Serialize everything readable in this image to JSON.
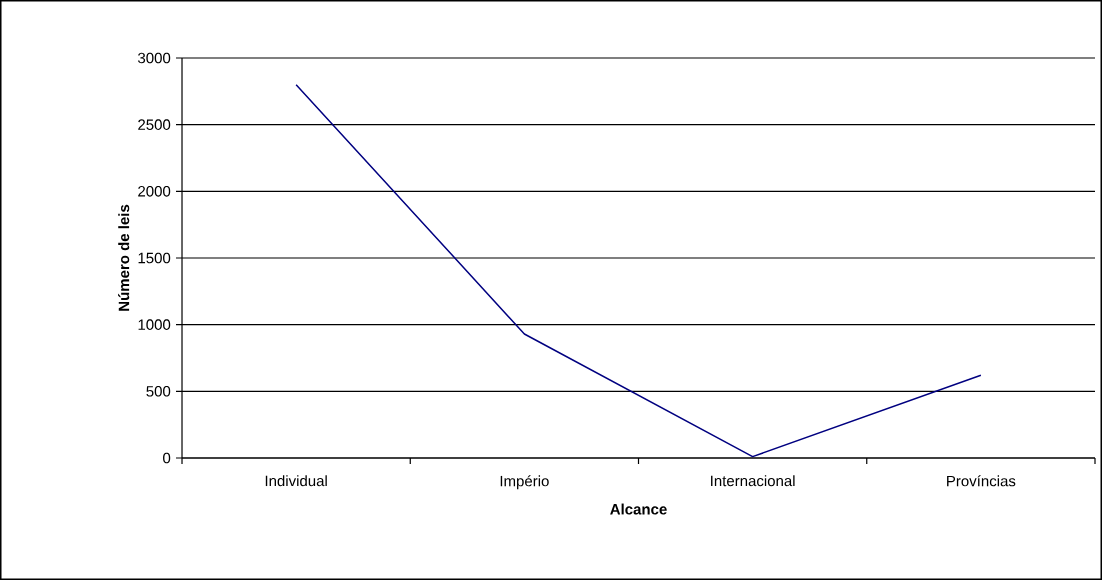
{
  "chart_data": {
    "type": "line",
    "xlabel": "Alcance",
    "ylabel": "Número de leis",
    "categories": [
      "Individual",
      "Império",
      "Internacional",
      "Províncias"
    ],
    "series": [
      {
        "color": "#000080",
        "values": [
          2800,
          930,
          10,
          620
        ]
      }
    ],
    "ylim": [
      0,
      3000
    ],
    "yticks": [
      0,
      500,
      1000,
      1500,
      2000,
      2500,
      3000
    ],
    "grid": "y",
    "marker": "none",
    "line_style": "solid"
  }
}
